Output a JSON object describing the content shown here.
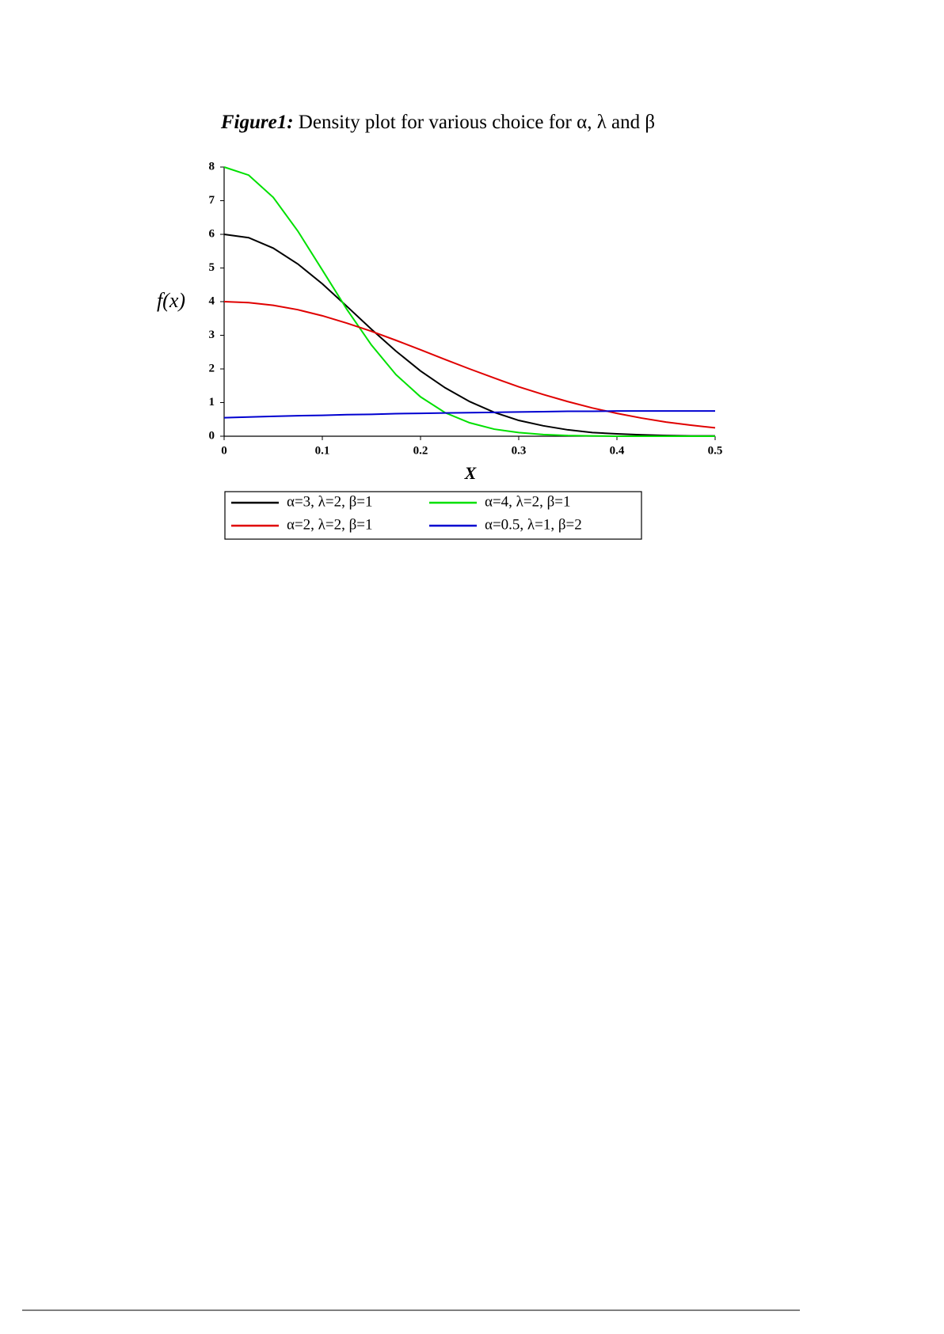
{
  "chart_data": {
    "type": "line",
    "title_label": "Figure1:",
    "title": "Density plot for various choice for α, λ and β",
    "x_label": "X",
    "y_label": "f(x)",
    "x": [
      0,
      0.025,
      0.05,
      0.075,
      0.1,
      0.125,
      0.15,
      0.175,
      0.2,
      0.225,
      0.25,
      0.275,
      0.3,
      0.325,
      0.35,
      0.375,
      0.4,
      0.425,
      0.45,
      0.475,
      0.5
    ],
    "series": [
      {
        "name": "α=3, λ=2, β=1",
        "color": "#000000",
        "values": [
          6,
          5.9,
          5.59,
          5.12,
          4.53,
          3.86,
          3.18,
          2.53,
          1.94,
          1.44,
          1.03,
          0.71,
          0.47,
          0.31,
          0.19,
          0.11,
          0.07,
          0.04,
          0.02,
          0.01,
          0.01
        ]
      },
      {
        "name": "α=4, λ=2, β=1",
        "color": "#00e000",
        "values": [
          8,
          7.76,
          7.1,
          6.1,
          4.94,
          3.77,
          2.71,
          1.83,
          1.17,
          0.7,
          0.4,
          0.21,
          0.11,
          0.05,
          0.02,
          0.01,
          0,
          0,
          0,
          0,
          0
        ]
      },
      {
        "name": "α=2, λ=2, β=1",
        "color": "#e00000",
        "values": [
          4,
          3.97,
          3.89,
          3.76,
          3.58,
          3.36,
          3.12,
          2.85,
          2.57,
          2.28,
          2,
          1.73,
          1.47,
          1.24,
          1.03,
          0.84,
          0.68,
          0.54,
          0.42,
          0.33,
          0.25
        ]
      },
      {
        "name": "α=0.5, λ=1, β=2",
        "color": "#0000d0",
        "values": [
          0.55,
          0.57,
          0.59,
          0.61,
          0.62,
          0.64,
          0.65,
          0.67,
          0.68,
          0.69,
          0.7,
          0.71,
          0.72,
          0.73,
          0.74,
          0.74,
          0.75,
          0.75,
          0.75,
          0.75,
          0.75
        ]
      }
    ],
    "xlim": [
      0,
      0.5
    ],
    "xticks": [
      0,
      0.1,
      0.2,
      0.3,
      0.4,
      0.5
    ],
    "ylim": [
      0,
      8
    ],
    "yticks": [
      0,
      1,
      2,
      3,
      4,
      5,
      6,
      7,
      8
    ]
  }
}
